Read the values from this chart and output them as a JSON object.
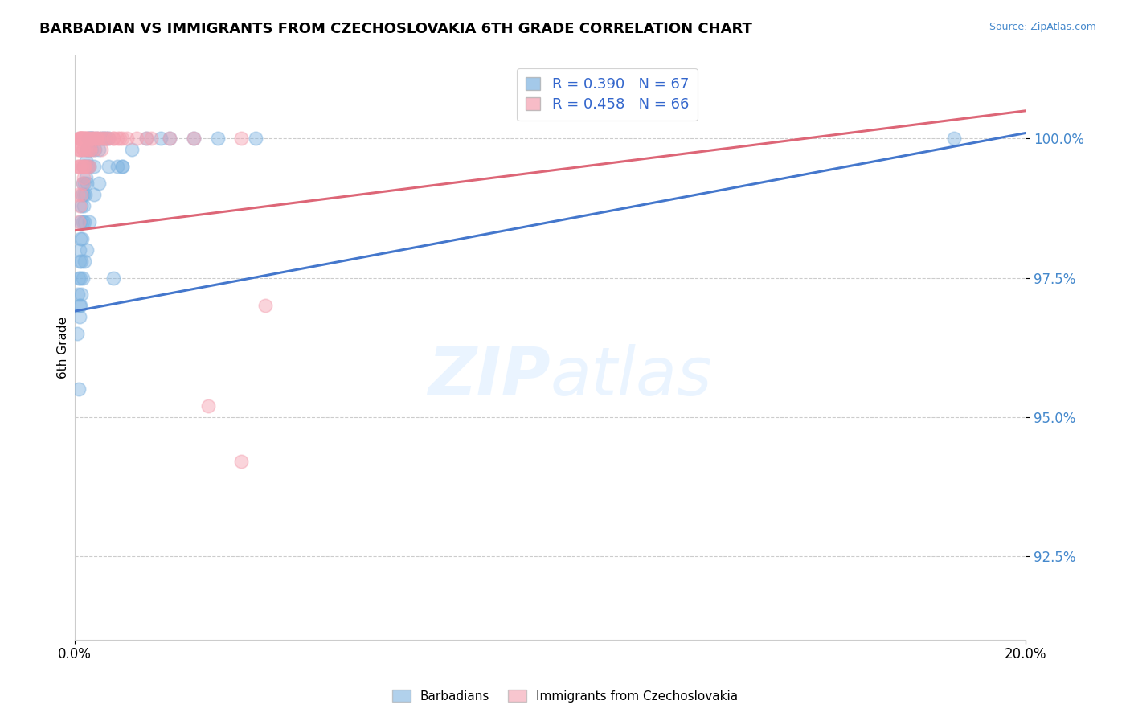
{
  "title": "BARBADIAN VS IMMIGRANTS FROM CZECHOSLOVAKIA 6TH GRADE CORRELATION CHART",
  "source_text": "Source: ZipAtlas.com",
  "ylabel": "6th Grade",
  "xlim": [
    0.0,
    20.0
  ],
  "ylim": [
    91.0,
    101.5
  ],
  "yticks": [
    92.5,
    95.0,
    97.5,
    100.0
  ],
  "ytick_labels": [
    "92.5%",
    "95.0%",
    "97.5%",
    "100.0%"
  ],
  "blue_color": "#7EB3E0",
  "pink_color": "#F4A0B0",
  "blue_line_color": "#4477CC",
  "pink_line_color": "#DD6677",
  "legend_R_blue": "0.390",
  "legend_N_blue": "67",
  "legend_R_pink": "0.458",
  "legend_N_pink": "66",
  "legend_label_blue": "Barbadians",
  "legend_label_pink": "Immigrants from Czechoslovakia",
  "blue_trend_x0": 0.0,
  "blue_trend_y0": 96.9,
  "blue_trend_x1": 20.0,
  "blue_trend_y1": 100.1,
  "pink_trend_x0": 0.0,
  "pink_trend_y0": 98.35,
  "pink_trend_x1": 20.0,
  "pink_trend_y1": 100.5,
  "blue_x": [
    0.05,
    0.07,
    0.08,
    0.09,
    0.1,
    0.1,
    0.11,
    0.12,
    0.12,
    0.13,
    0.14,
    0.15,
    0.15,
    0.16,
    0.17,
    0.18,
    0.18,
    0.19,
    0.2,
    0.2,
    0.21,
    0.22,
    0.23,
    0.24,
    0.25,
    0.25,
    0.26,
    0.27,
    0.28,
    0.3,
    0.3,
    0.32,
    0.33,
    0.35,
    0.35,
    0.37,
    0.4,
    0.42,
    0.45,
    0.5,
    0.55,
    0.6,
    0.65,
    0.7,
    0.8,
    0.9,
    1.0,
    1.2,
    1.5,
    2.0,
    2.5,
    3.0,
    3.8,
    18.5,
    0.08,
    0.09,
    0.12,
    0.14,
    0.16,
    0.2,
    0.25,
    0.3,
    0.4,
    0.5,
    0.7,
    1.0,
    1.8
  ],
  "blue_y": [
    96.5,
    97.2,
    97.5,
    97.8,
    98.0,
    97.0,
    98.2,
    97.5,
    98.5,
    98.8,
    97.8,
    98.2,
    99.0,
    99.2,
    98.5,
    99.0,
    99.5,
    98.8,
    99.2,
    98.5,
    99.5,
    99.0,
    99.3,
    99.6,
    99.8,
    99.2,
    99.5,
    99.8,
    100.0,
    99.5,
    100.0,
    99.8,
    100.0,
    100.0,
    99.8,
    100.0,
    99.5,
    99.8,
    100.0,
    99.8,
    100.0,
    100.0,
    100.0,
    100.0,
    97.5,
    99.5,
    99.5,
    99.8,
    100.0,
    100.0,
    100.0,
    100.0,
    100.0,
    100.0,
    95.5,
    96.8,
    97.0,
    97.2,
    97.5,
    97.8,
    98.0,
    98.5,
    99.0,
    99.2,
    99.5,
    99.5,
    100.0
  ],
  "pink_x": [
    0.05,
    0.06,
    0.07,
    0.08,
    0.08,
    0.09,
    0.1,
    0.1,
    0.11,
    0.12,
    0.12,
    0.13,
    0.14,
    0.15,
    0.15,
    0.16,
    0.17,
    0.18,
    0.18,
    0.19,
    0.2,
    0.2,
    0.22,
    0.23,
    0.24,
    0.25,
    0.27,
    0.28,
    0.3,
    0.3,
    0.32,
    0.35,
    0.38,
    0.4,
    0.45,
    0.5,
    0.55,
    0.6,
    0.7,
    0.8,
    0.9,
    1.0,
    1.5,
    2.5,
    3.5,
    0.08,
    0.1,
    0.13,
    0.16,
    0.19,
    0.22,
    0.26,
    0.32,
    0.38,
    0.45,
    0.55,
    0.65,
    0.8,
    0.95,
    1.1,
    1.3,
    1.6,
    2.0,
    2.8,
    3.5,
    4.0
  ],
  "pink_y": [
    99.5,
    99.0,
    99.8,
    99.5,
    100.0,
    99.8,
    100.0,
    99.5,
    100.0,
    100.0,
    99.8,
    100.0,
    100.0,
    100.0,
    99.5,
    99.8,
    100.0,
    99.5,
    100.0,
    99.8,
    100.0,
    99.5,
    100.0,
    99.8,
    100.0,
    100.0,
    99.8,
    100.0,
    100.0,
    99.5,
    99.8,
    100.0,
    100.0,
    99.8,
    100.0,
    100.0,
    99.8,
    100.0,
    100.0,
    100.0,
    100.0,
    100.0,
    100.0,
    100.0,
    100.0,
    98.5,
    98.8,
    99.0,
    99.2,
    99.3,
    99.5,
    99.5,
    99.8,
    100.0,
    100.0,
    100.0,
    100.0,
    100.0,
    100.0,
    100.0,
    100.0,
    100.0,
    100.0,
    95.2,
    94.2,
    97.0
  ]
}
